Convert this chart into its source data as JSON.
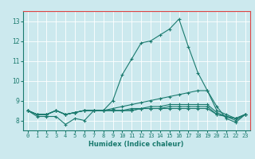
{
  "xlabel": "Humidex (Indice chaleur)",
  "ylabel": "",
  "xlim": [
    -0.5,
    23.5
  ],
  "ylim": [
    7.5,
    13.5
  ],
  "yticks": [
    8,
    9,
    10,
    11,
    12,
    13
  ],
  "xticks": [
    0,
    1,
    2,
    3,
    4,
    5,
    6,
    7,
    8,
    9,
    10,
    11,
    12,
    13,
    14,
    15,
    16,
    17,
    18,
    19,
    20,
    21,
    22,
    23
  ],
  "background_color": "#cce9ee",
  "grid_color": "#ffffff",
  "top_border_color": "#dd4444",
  "line_color": "#1a7a6e",
  "lines": [
    [
      8.5,
      8.2,
      8.2,
      8.2,
      7.8,
      8.1,
      8.0,
      8.5,
      8.5,
      9.0,
      10.3,
      11.1,
      11.9,
      12.0,
      12.3,
      12.6,
      13.1,
      11.7,
      10.4,
      9.5,
      8.7,
      8.1,
      7.9,
      8.3
    ],
    [
      8.5,
      8.3,
      8.3,
      8.5,
      8.3,
      8.4,
      8.5,
      8.5,
      8.5,
      8.6,
      8.7,
      8.8,
      8.9,
      9.0,
      9.1,
      9.2,
      9.3,
      9.4,
      9.5,
      9.5,
      8.5,
      8.3,
      8.1,
      8.3
    ],
    [
      8.5,
      8.3,
      8.3,
      8.5,
      8.3,
      8.4,
      8.5,
      8.5,
      8.5,
      8.5,
      8.5,
      8.6,
      8.6,
      8.7,
      8.7,
      8.8,
      8.8,
      8.8,
      8.8,
      8.8,
      8.4,
      8.2,
      8.1,
      8.3
    ],
    [
      8.5,
      8.3,
      8.3,
      8.5,
      8.3,
      8.4,
      8.5,
      8.5,
      8.5,
      8.5,
      8.5,
      8.5,
      8.6,
      8.6,
      8.6,
      8.7,
      8.7,
      8.7,
      8.7,
      8.7,
      8.3,
      8.2,
      8.1,
      8.3
    ],
    [
      8.5,
      8.3,
      8.3,
      8.5,
      8.3,
      8.4,
      8.5,
      8.5,
      8.5,
      8.5,
      8.5,
      8.5,
      8.6,
      8.6,
      8.6,
      8.6,
      8.6,
      8.6,
      8.6,
      8.6,
      8.3,
      8.2,
      8.0,
      8.3
    ]
  ],
  "xlabel_fontsize": 6.0,
  "xlabel_fontweight": "bold",
  "tick_fontsize": 5.0,
  "ytick_fontsize": 5.5
}
